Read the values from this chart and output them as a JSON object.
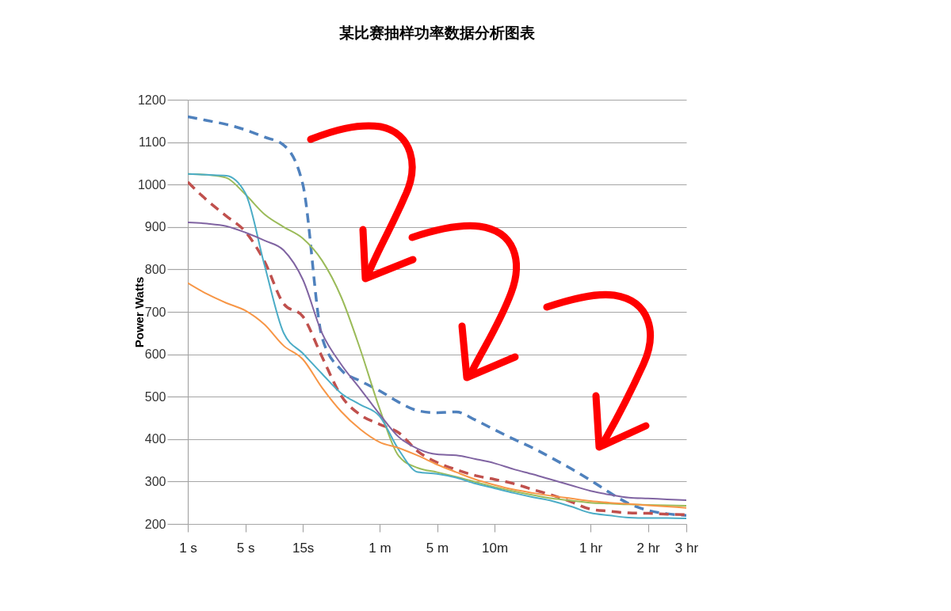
{
  "chart_data": {
    "type": "line",
    "title": "某比赛抽样功率数据分析图表",
    "ylabel": "Power Watts",
    "ylim": [
      200,
      1200
    ],
    "categories": [
      "1 s",
      null,
      null,
      "5 s",
      null,
      null,
      "15s",
      null,
      null,
      null,
      "1 m",
      null,
      null,
      "5 m",
      null,
      null,
      "10m",
      null,
      null,
      null,
      null,
      "1 hr",
      null,
      null,
      "2 hr",
      null,
      "3 hr"
    ],
    "yticks": [
      200,
      300,
      400,
      500,
      600,
      700,
      800,
      900,
      1000,
      1100,
      1200
    ],
    "grid": "y",
    "marker": "none",
    "series": [
      {
        "color": "#4f81bd",
        "line_style": "dashed",
        "values": [
          1160,
          1151,
          1142,
          1129,
          1112,
          1093,
          1000,
          640,
          563,
          537,
          514,
          487,
          467,
          462,
          464,
          445,
          422,
          400,
          379,
          355,
          330,
          303,
          274,
          248,
          232,
          224,
          220
        ]
      },
      {
        "color": "#9bbb59",
        "line_style": "solid",
        "values": [
          1025,
          1023,
          1016,
          977,
          930,
          900,
          873,
          821,
          735,
          611,
          472,
          360,
          332,
          322,
          311,
          299,
          287,
          277,
          268,
          260,
          255,
          250,
          248,
          246,
          245,
          244,
          243
        ]
      },
      {
        "color": "#4bacc6",
        "line_style": "solid",
        "values": [
          1025,
          1023,
          1021,
          980,
          810,
          650,
          602,
          554,
          508,
          481,
          454,
          375,
          322,
          318,
          309,
          295,
          284,
          273,
          263,
          254,
          241,
          226,
          220,
          215,
          214,
          214,
          213
        ]
      },
      {
        "color": "#c0504d",
        "line_style": "dashed",
        "values": [
          1006,
          963,
          926,
          889,
          819,
          719,
          689,
          594,
          502,
          457,
          435,
          415,
          371,
          345,
          328,
          314,
          305,
          295,
          281,
          268,
          252,
          235,
          230,
          226,
          225,
          223,
          222
        ]
      },
      {
        "color": "#8064a2",
        "line_style": "solid",
        "values": [
          911,
          908,
          902,
          887,
          868,
          845,
          776,
          650,
          576,
          518,
          459,
          405,
          377,
          364,
          362,
          353,
          343,
          329,
          317,
          304,
          291,
          278,
          269,
          262,
          260,
          258,
          256
        ]
      },
      {
        "color": "#f79646",
        "line_style": "solid",
        "values": [
          768,
          742,
          721,
          703,
          670,
          620,
          588,
          521,
          465,
          423,
          393,
          379,
          361,
          340,
          322,
          305,
          292,
          281,
          273,
          266,
          260,
          254,
          250,
          247,
          244,
          241,
          238
        ]
      }
    ]
  }
}
